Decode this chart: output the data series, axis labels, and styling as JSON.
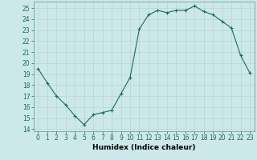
{
  "x": [
    0,
    1,
    2,
    3,
    4,
    5,
    6,
    7,
    8,
    9,
    10,
    11,
    12,
    13,
    14,
    15,
    16,
    17,
    18,
    19,
    20,
    21,
    22,
    23
  ],
  "y": [
    19.5,
    18.2,
    17.0,
    16.2,
    15.2,
    14.4,
    15.3,
    15.5,
    15.7,
    17.2,
    18.7,
    23.1,
    24.4,
    24.8,
    24.6,
    24.8,
    24.8,
    25.2,
    24.7,
    24.4,
    23.8,
    23.2,
    20.7,
    19.1
  ],
  "xlabel": "Humidex (Indice chaleur)",
  "xlim": [
    -0.5,
    23.5
  ],
  "ylim": [
    13.8,
    25.6
  ],
  "yticks": [
    14,
    15,
    16,
    17,
    18,
    19,
    20,
    21,
    22,
    23,
    24,
    25
  ],
  "xticks": [
    0,
    1,
    2,
    3,
    4,
    5,
    6,
    7,
    8,
    9,
    10,
    11,
    12,
    13,
    14,
    15,
    16,
    17,
    18,
    19,
    20,
    21,
    22,
    23
  ],
  "line_color": "#1a6b5e",
  "marker": "+",
  "bg_color": "#cde8e8",
  "grid_color": "#b8d4d4",
  "label_fontsize": 6.5,
  "tick_fontsize": 5.5
}
